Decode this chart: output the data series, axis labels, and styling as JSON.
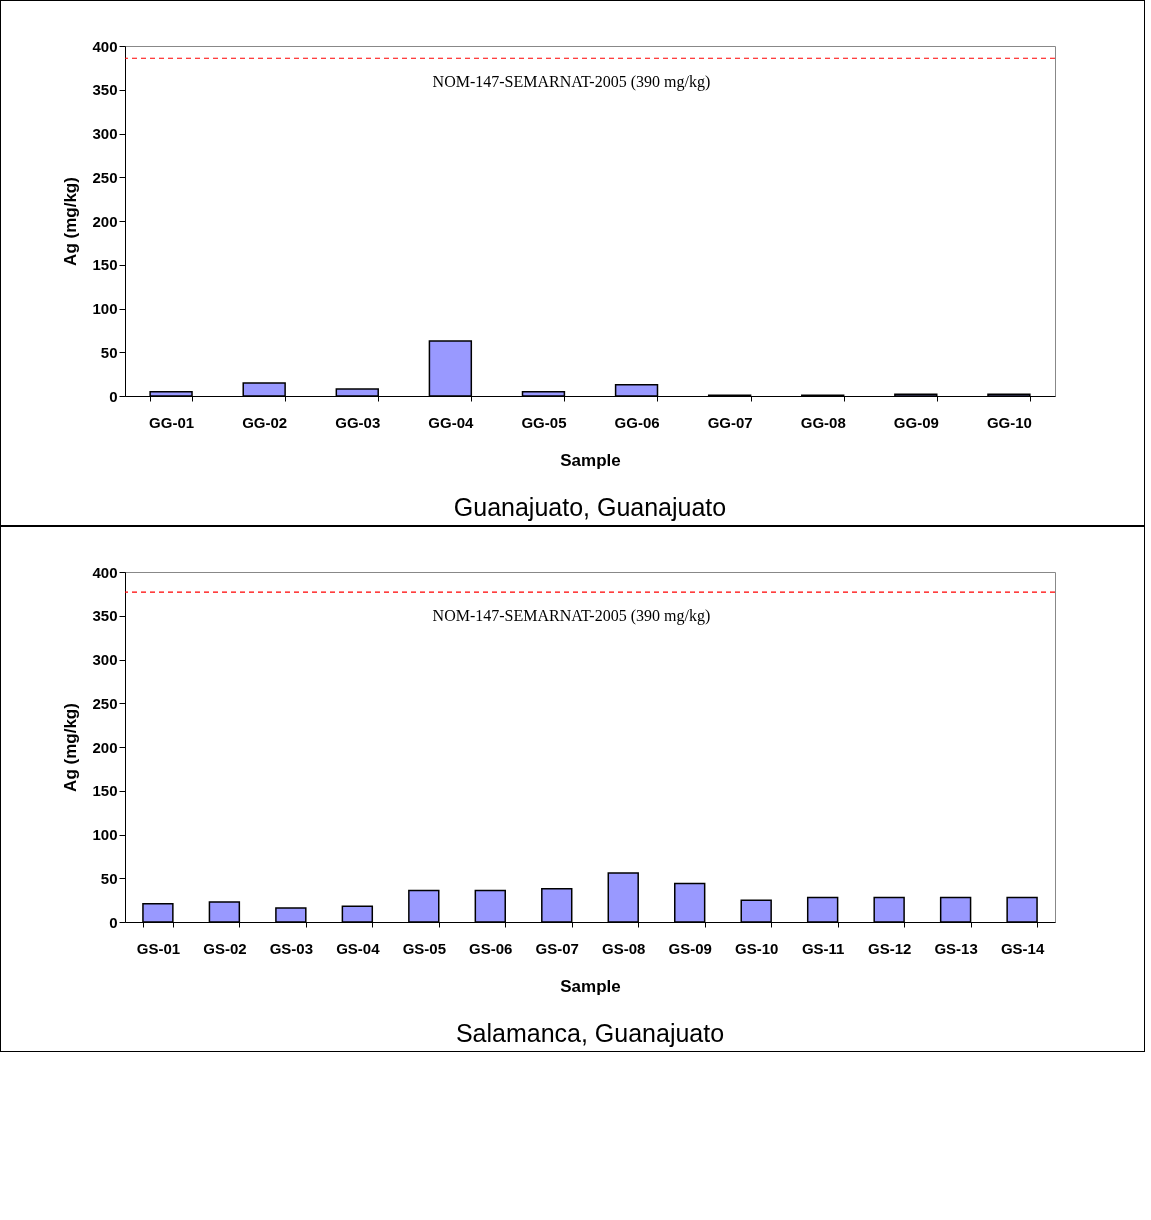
{
  "chart_data": [
    {
      "type": "bar",
      "title": "Guanajuato, Guanajuato",
      "xlabel": "Sample",
      "ylabel": "Ag (mg/kg)",
      "categories": [
        "GG-01",
        "GG-02",
        "GG-03",
        "GG-04",
        "GG-05",
        "GG-06",
        "GG-07",
        "GG-08",
        "GG-09",
        "GG-10"
      ],
      "values": [
        5,
        15,
        8,
        63,
        5,
        13,
        1,
        1,
        2,
        2
      ],
      "color": "#9999ff",
      "ylim": [
        0,
        400
      ],
      "yticks": [
        0,
        50,
        100,
        150,
        200,
        250,
        300,
        350,
        400
      ],
      "grid": false,
      "ref_lines": [
        {
          "axis": "y",
          "value": 386,
          "label": "NOM-147-SEMARNAT-2005 (390 mg/kg)",
          "color": "#ff0000",
          "line_style": "dashed"
        }
      ]
    },
    {
      "type": "bar",
      "title": "Salamanca, Guanajuato",
      "xlabel": "Sample",
      "ylabel": "Ag (mg/kg)",
      "categories": [
        "GS-01",
        "GS-02",
        "GS-03",
        "GS-04",
        "GS-05",
        "GS-06",
        "GS-07",
        "GS-08",
        "GS-09",
        "GS-10",
        "GS-11",
        "GS-12",
        "GS-13",
        "GS-14"
      ],
      "values": [
        21,
        23,
        16,
        18,
        36,
        36,
        38,
        56,
        44,
        25,
        28,
        28,
        28,
        28
      ],
      "color": "#9999ff",
      "ylim": [
        0,
        400
      ],
      "yticks": [
        0,
        50,
        100,
        150,
        200,
        250,
        300,
        350,
        400
      ],
      "grid": false,
      "ref_lines": [
        {
          "axis": "y",
          "value": 377,
          "label": "NOM-147-SEMARNAT-2005 (390 mg/kg)",
          "color": "#ff0000",
          "line_style": "dashed"
        }
      ]
    }
  ]
}
